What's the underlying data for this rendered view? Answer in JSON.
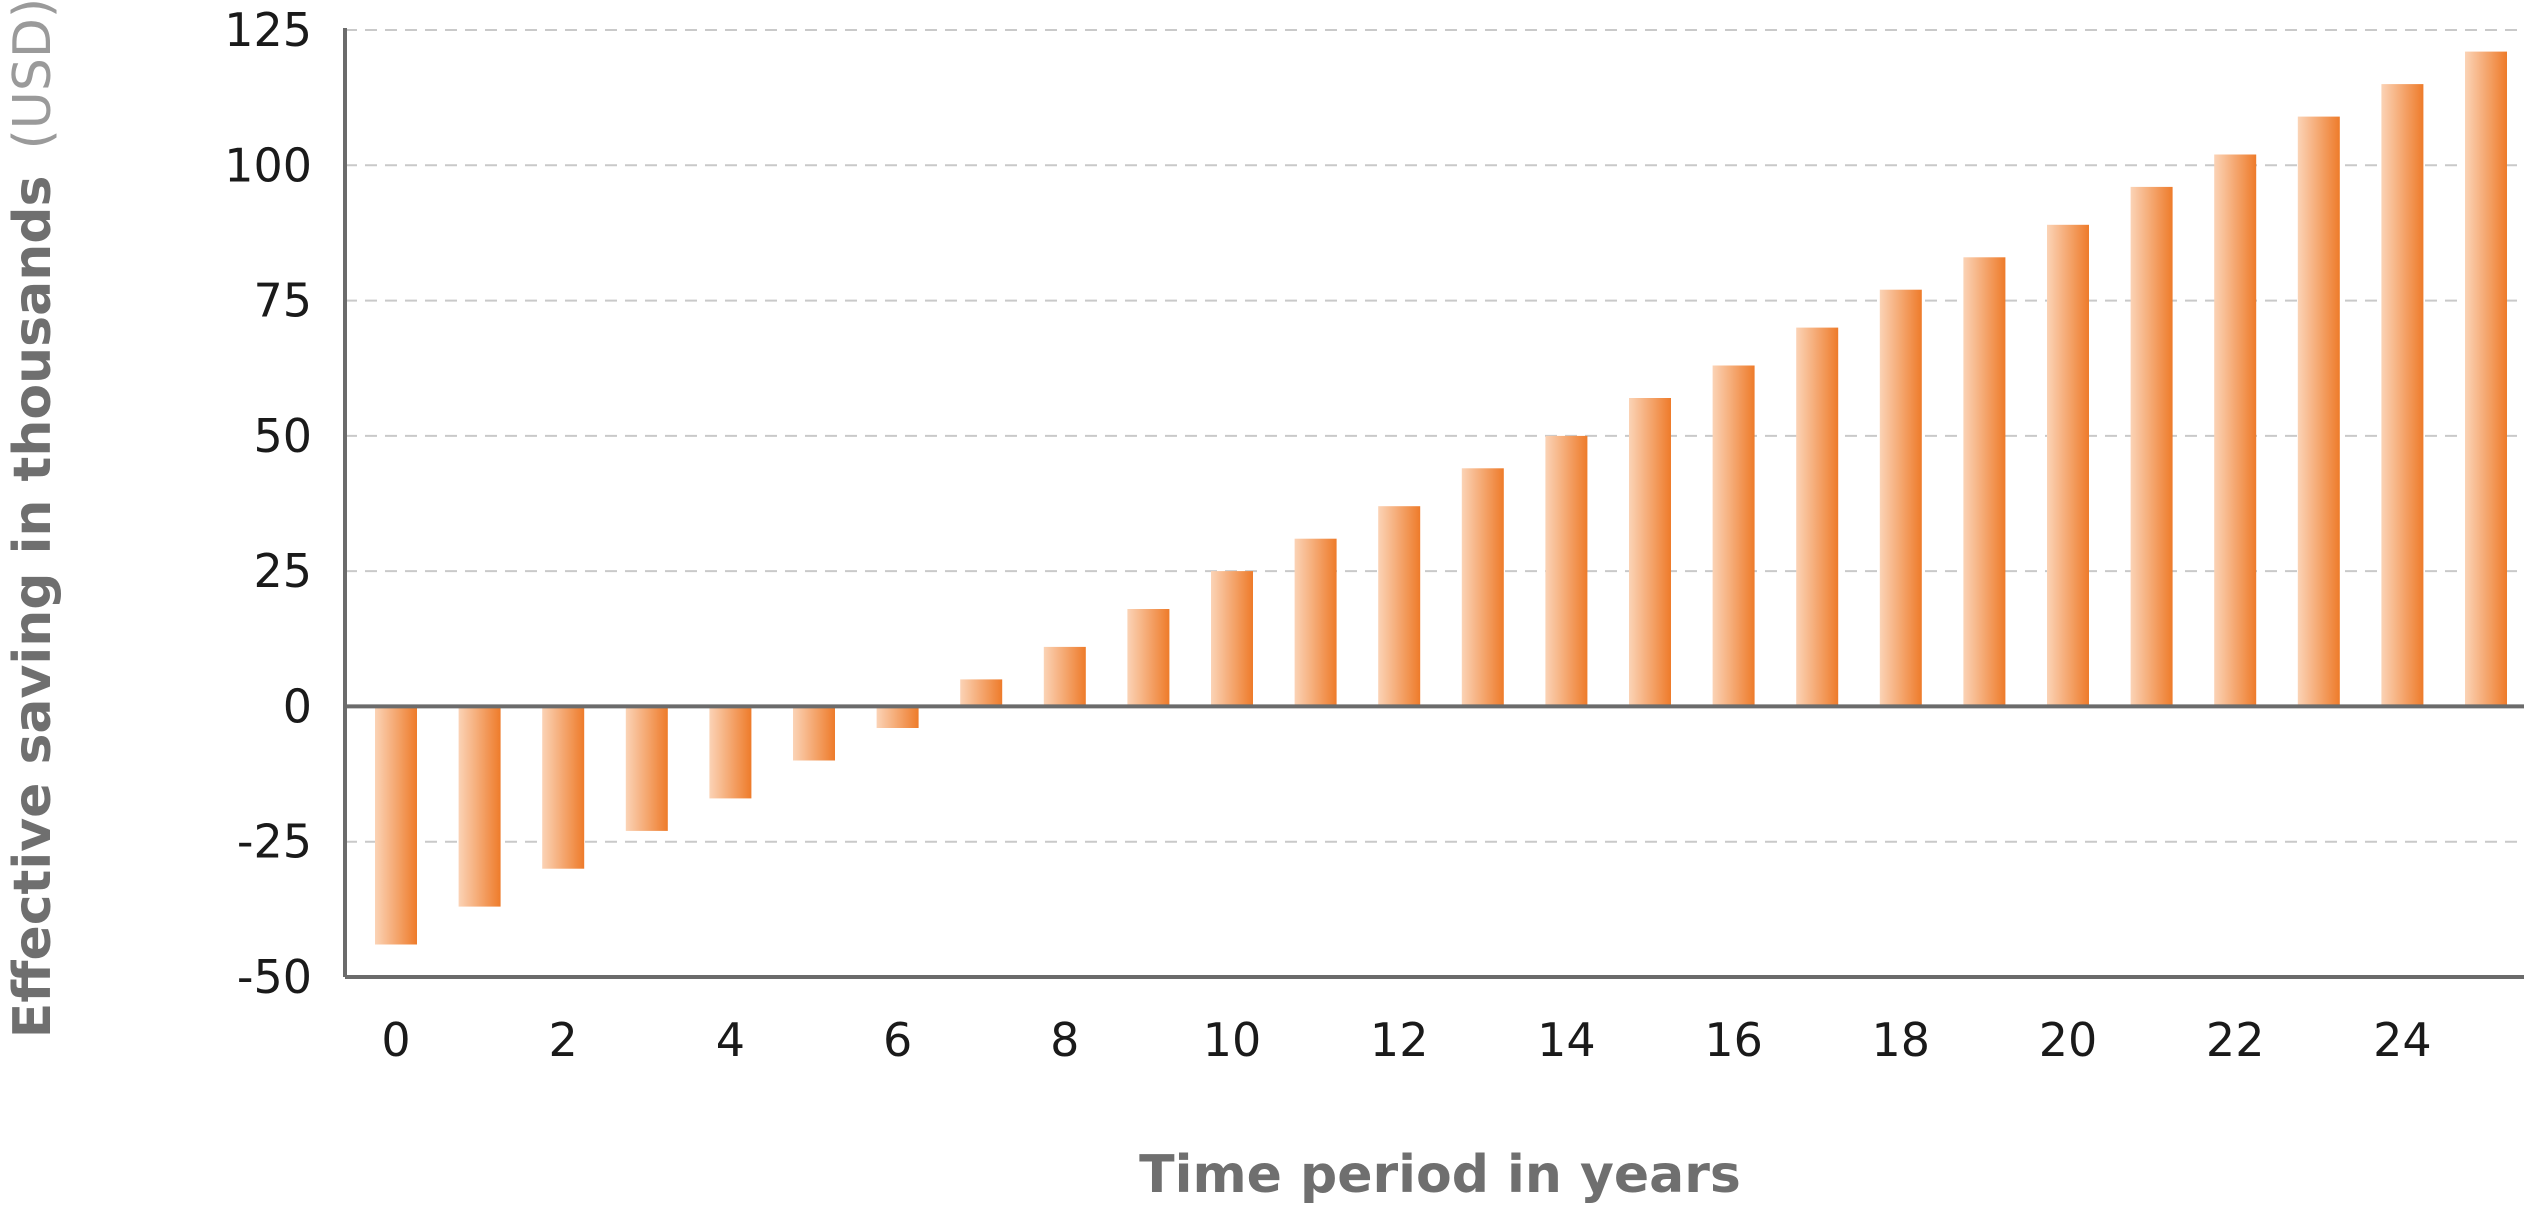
{
  "chart_data": {
    "type": "bar",
    "title": "",
    "xlabel": "Time period in years",
    "ylabel": {
      "bold": "Effective saving in thousands",
      "unit": "(USD)"
    },
    "ylim": [
      -50,
      125
    ],
    "yticks": [
      -50,
      -25,
      0,
      25,
      50,
      75,
      100,
      125
    ],
    "categories": [
      "0",
      "1",
      "2",
      "3",
      "4",
      "5",
      "6",
      "7",
      "8",
      "9",
      "10",
      "11",
      "12",
      "13",
      "14",
      "15",
      "16",
      "17",
      "18",
      "19",
      "20",
      "21",
      "22",
      "23",
      "24",
      "25"
    ],
    "xtick_labels": [
      "0",
      "2",
      "4",
      "6",
      "8",
      "10",
      "12",
      "14",
      "16",
      "18",
      "20",
      "22",
      "24"
    ],
    "values": [
      -44,
      -37,
      -30,
      -23,
      -17,
      -10,
      -4,
      5,
      11,
      18,
      25,
      31,
      37,
      44,
      50,
      57,
      63,
      70,
      77,
      83,
      89,
      96,
      102,
      109,
      115,
      121
    ],
    "grid": true,
    "legend": "none",
    "colors": {
      "bar_light": "#fbd3b6",
      "bar_dark": "#ee7b2a",
      "grid": "#c9c9c9",
      "axis": "#6b6b6b",
      "axis_title": "#6f6f6f",
      "tick_text": "#1a1a1a"
    }
  }
}
